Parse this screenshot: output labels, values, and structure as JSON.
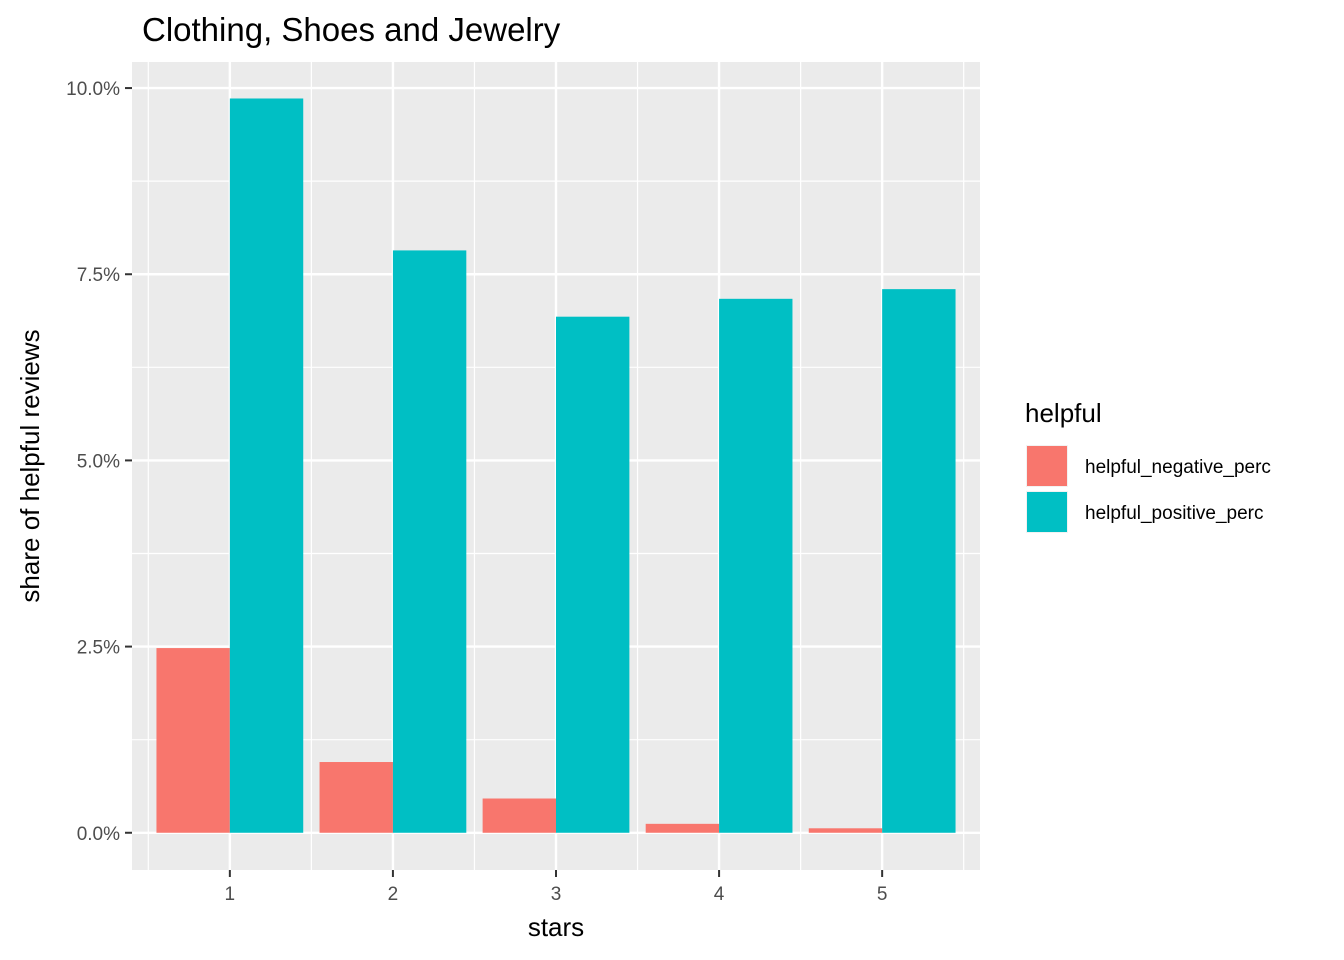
{
  "chart_data": {
    "type": "bar",
    "title": "Clothing, Shoes and Jewelry",
    "xlabel": "stars",
    "ylabel": "share of helpful reviews",
    "categories": [
      "1",
      "2",
      "3",
      "4",
      "5"
    ],
    "series": [
      {
        "name": "helpful_negative_perc",
        "color": "#F8766D",
        "values": [
          2.48,
          0.95,
          0.46,
          0.12,
          0.06
        ]
      },
      {
        "name": "helpful_positive_perc",
        "color": "#00BFC4",
        "values": [
          9.86,
          7.82,
          6.93,
          7.17,
          7.3
        ]
      }
    ],
    "ylim": [
      -0.5,
      10.35
    ],
    "yticks": [
      0,
      2.5,
      5,
      7.5,
      10
    ],
    "ytick_labels": [
      "0.0%",
      "2.5%",
      "5.0%",
      "7.5%",
      "10.0%"
    ],
    "grid": true,
    "legend": {
      "title": "helpful",
      "position": "right"
    },
    "panel_color": "#EBEBEB",
    "grid_color": "#FFFFFF"
  }
}
